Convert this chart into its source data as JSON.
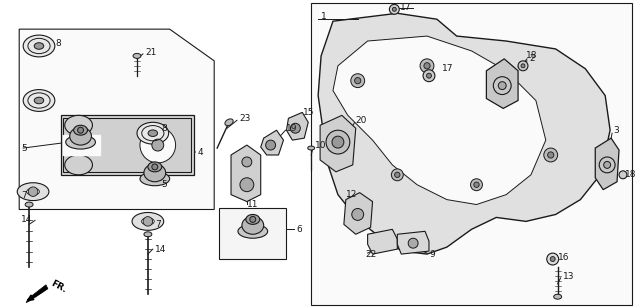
{
  "bg": "#ffffff",
  "lc": "#1a1a1a",
  "lw": 0.8,
  "figsize": [
    6.4,
    3.08
  ],
  "dpi": 100
}
